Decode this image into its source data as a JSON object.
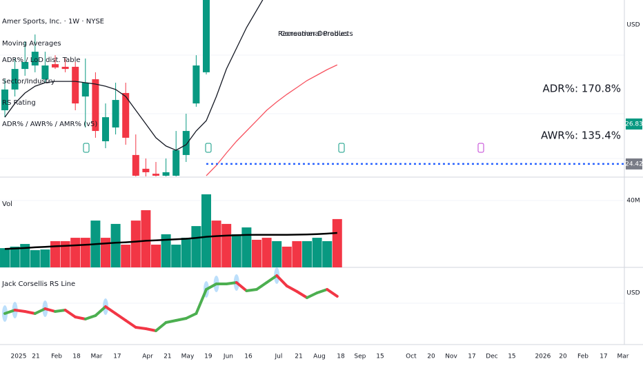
{
  "chart_data": [
    {
      "type": "candlestick",
      "legend": [
        "Amer Sports, Inc. · 1W · NYSE",
        "Moving Averages",
        "ADR% / LoD dist. Table",
        "Sector/Industry",
        "RS Rating",
        "ADR% / AWR% / AMR% (v5)"
      ],
      "sector": "Recreational Products",
      "industry": "Consumer Durables",
      "adr_label": "ADR%: 170.8%",
      "awr_label": "AWR%: 135.4%",
      "currency": "USD",
      "last_price": 26.83,
      "low_line": 24.42,
      "up_color": "#089981",
      "down_color": "#f23645",
      "xlim": [
        -0.48,
        61.51
      ],
      "ylim": [
        23.71,
        34.31
      ],
      "xticks": [
        {
          "value": 1.37,
          "label": "2025"
        },
        {
          "value": 3.08,
          "label": "21"
        },
        {
          "value": 5.14,
          "label": "Feb"
        },
        {
          "value": 7.12,
          "label": "18"
        },
        {
          "value": 9.11,
          "label": "Mar"
        },
        {
          "value": 11.16,
          "label": "17"
        },
        {
          "value": 14.18,
          "label": "Apr"
        },
        {
          "value": 16.16,
          "label": "21"
        },
        {
          "value": 18.15,
          "label": "May"
        },
        {
          "value": 20.2,
          "label": "19"
        },
        {
          "value": 22.19,
          "label": "Jun"
        },
        {
          "value": 24.18,
          "label": "16"
        },
        {
          "value": 27.19,
          "label": "Jul"
        },
        {
          "value": 29.18,
          "label": "21"
        },
        {
          "value": 31.23,
          "label": "Aug"
        },
        {
          "value": 33.36,
          "label": "18"
        },
        {
          "value": 35.27,
          "label": "Sep"
        },
        {
          "value": 37.26,
          "label": "15"
        },
        {
          "value": 40.34,
          "label": "Oct"
        },
        {
          "value": 42.33,
          "label": "20"
        },
        {
          "value": 44.32,
          "label": "Nov"
        },
        {
          "value": 46.37,
          "label": "17"
        },
        {
          "value": 48.36,
          "label": "Dec"
        },
        {
          "value": 50.34,
          "label": "15"
        },
        {
          "value": 53.42,
          "label": "2026"
        },
        {
          "value": 55.41,
          "label": "20"
        },
        {
          "value": 57.4,
          "label": "Feb"
        },
        {
          "value": 59.45,
          "label": "17"
        },
        {
          "value": 61.37,
          "label": "Mar"
        }
      ],
      "x": [
        0,
        1,
        2,
        3,
        4,
        5,
        6,
        7,
        8,
        9,
        10,
        11,
        12,
        13,
        14,
        15,
        16,
        17,
        18,
        19,
        20
      ],
      "open": [
        27.66,
        28.91,
        30.15,
        30.36,
        29.53,
        30.44,
        30.28,
        30.28,
        28.49,
        29.53,
        25.79,
        26.62,
        28.7,
        24.96,
        24.13,
        23.83,
        23.71,
        23.71,
        24.96,
        28.07,
        29.95
      ],
      "high": [
        29.53,
        30.78,
        31.82,
        32.23,
        31.19,
        30.98,
        30.78,
        30.57,
        30.78,
        29.95,
        28.07,
        29.32,
        29.32,
        26.2,
        24.75,
        24.54,
        24.75,
        26.41,
        27.45,
        30.98,
        34.73
      ],
      "low": [
        27.24,
        28.49,
        29.74,
        29.95,
        29.32,
        30.15,
        29.95,
        27.66,
        26.62,
        26.0,
        25.37,
        26.2,
        25.58,
        23.42,
        23.59,
        23.59,
        23.59,
        23.59,
        24.54,
        27.87,
        29.82
      ],
      "close": [
        28.91,
        30.15,
        30.57,
        31.19,
        30.36,
        30.24,
        30.15,
        28.07,
        29.32,
        26.41,
        27.24,
        28.28,
        26.0,
        23.71,
        23.92,
        23.71,
        23.92,
        25.25,
        26.41,
        30.36,
        34.31
      ],
      "lines": [
        {
          "color": "#131722",
          "x": [
            0,
            1,
            2,
            3,
            4,
            5,
            6,
            7,
            8,
            9,
            10,
            11,
            12,
            13,
            14,
            15,
            16,
            17,
            18,
            19,
            20,
            21,
            22,
            23,
            24,
            25,
            26
          ],
          "values": [
            27.24,
            28.07,
            28.7,
            29.11,
            29.32,
            29.4,
            29.4,
            29.4,
            29.32,
            29.24,
            29.11,
            28.91,
            28.49,
            27.66,
            26.83,
            26.0,
            25.5,
            25.25,
            25.58,
            26.41,
            27.03,
            28.49,
            30.15,
            31.4,
            32.65,
            33.69,
            34.73
          ]
        },
        {
          "color": "#f7525f",
          "x": [
            20,
            21,
            22,
            23,
            24,
            25,
            26,
            27,
            28,
            29,
            30,
            31,
            32,
            33
          ],
          "values": [
            23.71,
            24.33,
            25.08,
            25.79,
            26.41,
            27.03,
            27.66,
            28.16,
            28.62,
            29.03,
            29.45,
            29.78,
            30.11,
            30.4
          ]
        }
      ]
    },
    {
      "type": "bar",
      "title": "Vol",
      "ylim": [
        0,
        53.6
      ],
      "yticks": [
        {
          "value": 40,
          "label": "40M"
        }
      ],
      "x": [
        0,
        1,
        2,
        3,
        4,
        5,
        6,
        7,
        8,
        9,
        10,
        11,
        12,
        13,
        14,
        15,
        16,
        17,
        18,
        19,
        20,
        21,
        22,
        23,
        24,
        25,
        26,
        27,
        28,
        29,
        30,
        31,
        32,
        33
      ],
      "values": [
        11.5,
        12.4,
        14,
        10.3,
        10.7,
        15.7,
        15.7,
        17.7,
        17.7,
        28,
        17.7,
        26,
        13.6,
        28,
        34.2,
        13.6,
        19.8,
        13.6,
        17.7,
        24.7,
        43.7,
        28,
        26,
        19.8,
        23.9,
        16.5,
        17.7,
        15.7,
        12.4,
        15.7,
        15.7,
        17.7,
        15.7,
        28.9
      ],
      "colors": [
        "#089981",
        "#089981",
        "#089981",
        "#089981",
        "#089981",
        "#f23645",
        "#f23645",
        "#f23645",
        "#f23645",
        "#089981",
        "#f23645",
        "#089981",
        "#f23645",
        "#f23645",
        "#f23645",
        "#f23645",
        "#089981",
        "#089981",
        "#089981",
        "#089981",
        "#089981",
        "#f23645",
        "#f23645",
        "#089981",
        "#089981",
        "#f23645",
        "#f23645",
        "#089981",
        "#f23645",
        "#f23645",
        "#089981",
        "#089981",
        "#089981",
        "#f23645"
      ],
      "ma": {
        "color": "#000000",
        "values": [
          11,
          11.3,
          11.6,
          12,
          12.3,
          12.6,
          12.9,
          13.2,
          13.5,
          13.9,
          14.3,
          14.7,
          15,
          15.4,
          15.9,
          16.2,
          16.5,
          16.8,
          17.1,
          17.6,
          18.3,
          18.7,
          19,
          19.2,
          19.4,
          19.5,
          19.5,
          19.5,
          19.5,
          19.6,
          19.7,
          19.9,
          20.2,
          20.6
        ]
      }
    },
    {
      "type": "line",
      "title": "Jack Corsellis RS Line",
      "currency": "USD",
      "ylim": [
        0,
        95
      ],
      "up_color": "#4caf50",
      "down_color": "#f23645",
      "highlight_color": "#90caf9",
      "x": [
        0,
        1,
        2,
        3,
        4,
        5,
        6,
        7,
        8,
        9,
        10,
        11,
        12,
        13,
        14,
        15,
        16,
        17,
        18,
        19,
        20,
        21,
        22,
        23,
        24,
        25,
        26,
        27,
        28,
        29,
        30,
        31,
        32,
        33
      ],
      "values": [
        30,
        35,
        33,
        30,
        37,
        33,
        35,
        25,
        22,
        27,
        40,
        30,
        20,
        10,
        8,
        5,
        17,
        20,
        23,
        30,
        65,
        73,
        73,
        75,
        63,
        65,
        75,
        85,
        70,
        62,
        53,
        60,
        65,
        55
      ]
    }
  ]
}
